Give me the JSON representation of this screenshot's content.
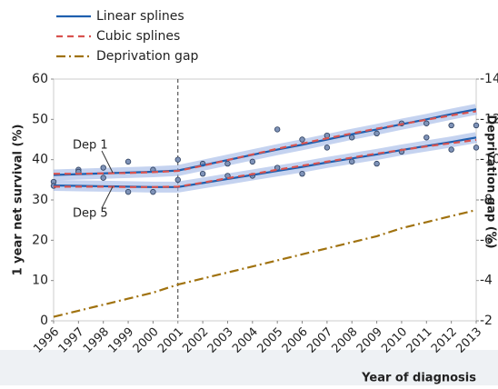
{
  "chart_data": {
    "type": "line",
    "x": [
      1996,
      1997,
      1998,
      1999,
      2000,
      2001,
      2002,
      2003,
      2004,
      2005,
      2006,
      2007,
      2008,
      2009,
      2010,
      2011,
      2012,
      2013
    ],
    "xlim": [
      1996,
      2013
    ],
    "xticks": [
      1996,
      1997,
      1998,
      1999,
      2000,
      2001,
      2002,
      2003,
      2004,
      2005,
      2006,
      2007,
      2008,
      2009,
      2010,
      2011,
      2012,
      2013
    ],
    "ylim": [
      0,
      60
    ],
    "yticks": [
      0,
      10,
      20,
      30,
      40,
      50,
      60
    ],
    "y2lim": [
      -2,
      -14
    ],
    "y2ticks": [
      -2,
      -4,
      -6,
      -8,
      -10,
      -12,
      -14
    ],
    "y_label": "1 year net survival (%)",
    "y2_label": "Deprivation gap (%)",
    "x_label": "Year of diagnosis",
    "vline": 2001,
    "annotations": [
      "Dep 1",
      "Dep 5"
    ],
    "series": [
      {
        "name": "Linear splines",
        "color": "#1f5fae",
        "dash": "none",
        "band": true,
        "groups": [
          {
            "values": [
              36.2,
              36.4,
              36.6,
              36.8,
              37.0,
              37.3,
              38.6,
              39.9,
              41.2,
              42.5,
              43.7,
              45.0,
              46.3,
              47.5,
              48.8,
              50.0,
              51.3,
              52.5
            ]
          },
          {
            "values": [
              33.6,
              33.5,
              33.4,
              33.3,
              33.2,
              33.2,
              34.2,
              35.2,
              36.2,
              37.2,
              38.2,
              39.3,
              40.3,
              41.3,
              42.4,
              43.4,
              44.4,
              45.5
            ]
          }
        ]
      },
      {
        "name": "Cubic splines",
        "color": "#d9534f",
        "dash": "7 5",
        "groups": [
          {
            "values": [
              36.5,
              36.5,
              36.6,
              36.7,
              36.9,
              37.2,
              38.5,
              39.9,
              41.3,
              42.7,
              44.0,
              45.3,
              46.5,
              47.7,
              48.8,
              49.9,
              51.0,
              52.0
            ]
          },
          {
            "values": [
              33.3,
              33.3,
              33.3,
              33.2,
              33.2,
              33.3,
              34.3,
              35.4,
              36.4,
              37.5,
              38.5,
              39.5,
              40.5,
              41.5,
              42.4,
              43.3,
              44.1,
              44.9
            ]
          }
        ]
      },
      {
        "name": "Deprivation gap",
        "color": "#a0720f",
        "dash": "10 4 2 4",
        "axis": "y2",
        "groups": [
          {
            "values": [
              -2.2,
              -2.5,
              -2.8,
              -3.1,
              -3.4,
              -3.8,
              -4.1,
              -4.4,
              -4.7,
              -5.0,
              -5.3,
              -5.6,
              -5.9,
              -6.2,
              -6.6,
              -6.9,
              -7.2,
              -7.5
            ]
          }
        ]
      }
    ],
    "observed": [
      [
        34.5,
        37.5,
        38.0,
        39.5,
        37.5,
        40.0,
        39.0,
        39.0,
        39.5,
        47.5,
        45.0,
        46.0,
        45.5,
        46.5,
        49.0,
        49.0,
        48.5,
        48.5
      ],
      [
        33.5,
        37.0,
        35.5,
        32.0,
        32.0,
        35.0,
        36.5,
        36.0,
        36.0,
        38.0,
        36.5,
        43.0,
        39.5,
        39.0,
        42.0,
        45.5,
        42.5,
        43.0
      ]
    ]
  }
}
